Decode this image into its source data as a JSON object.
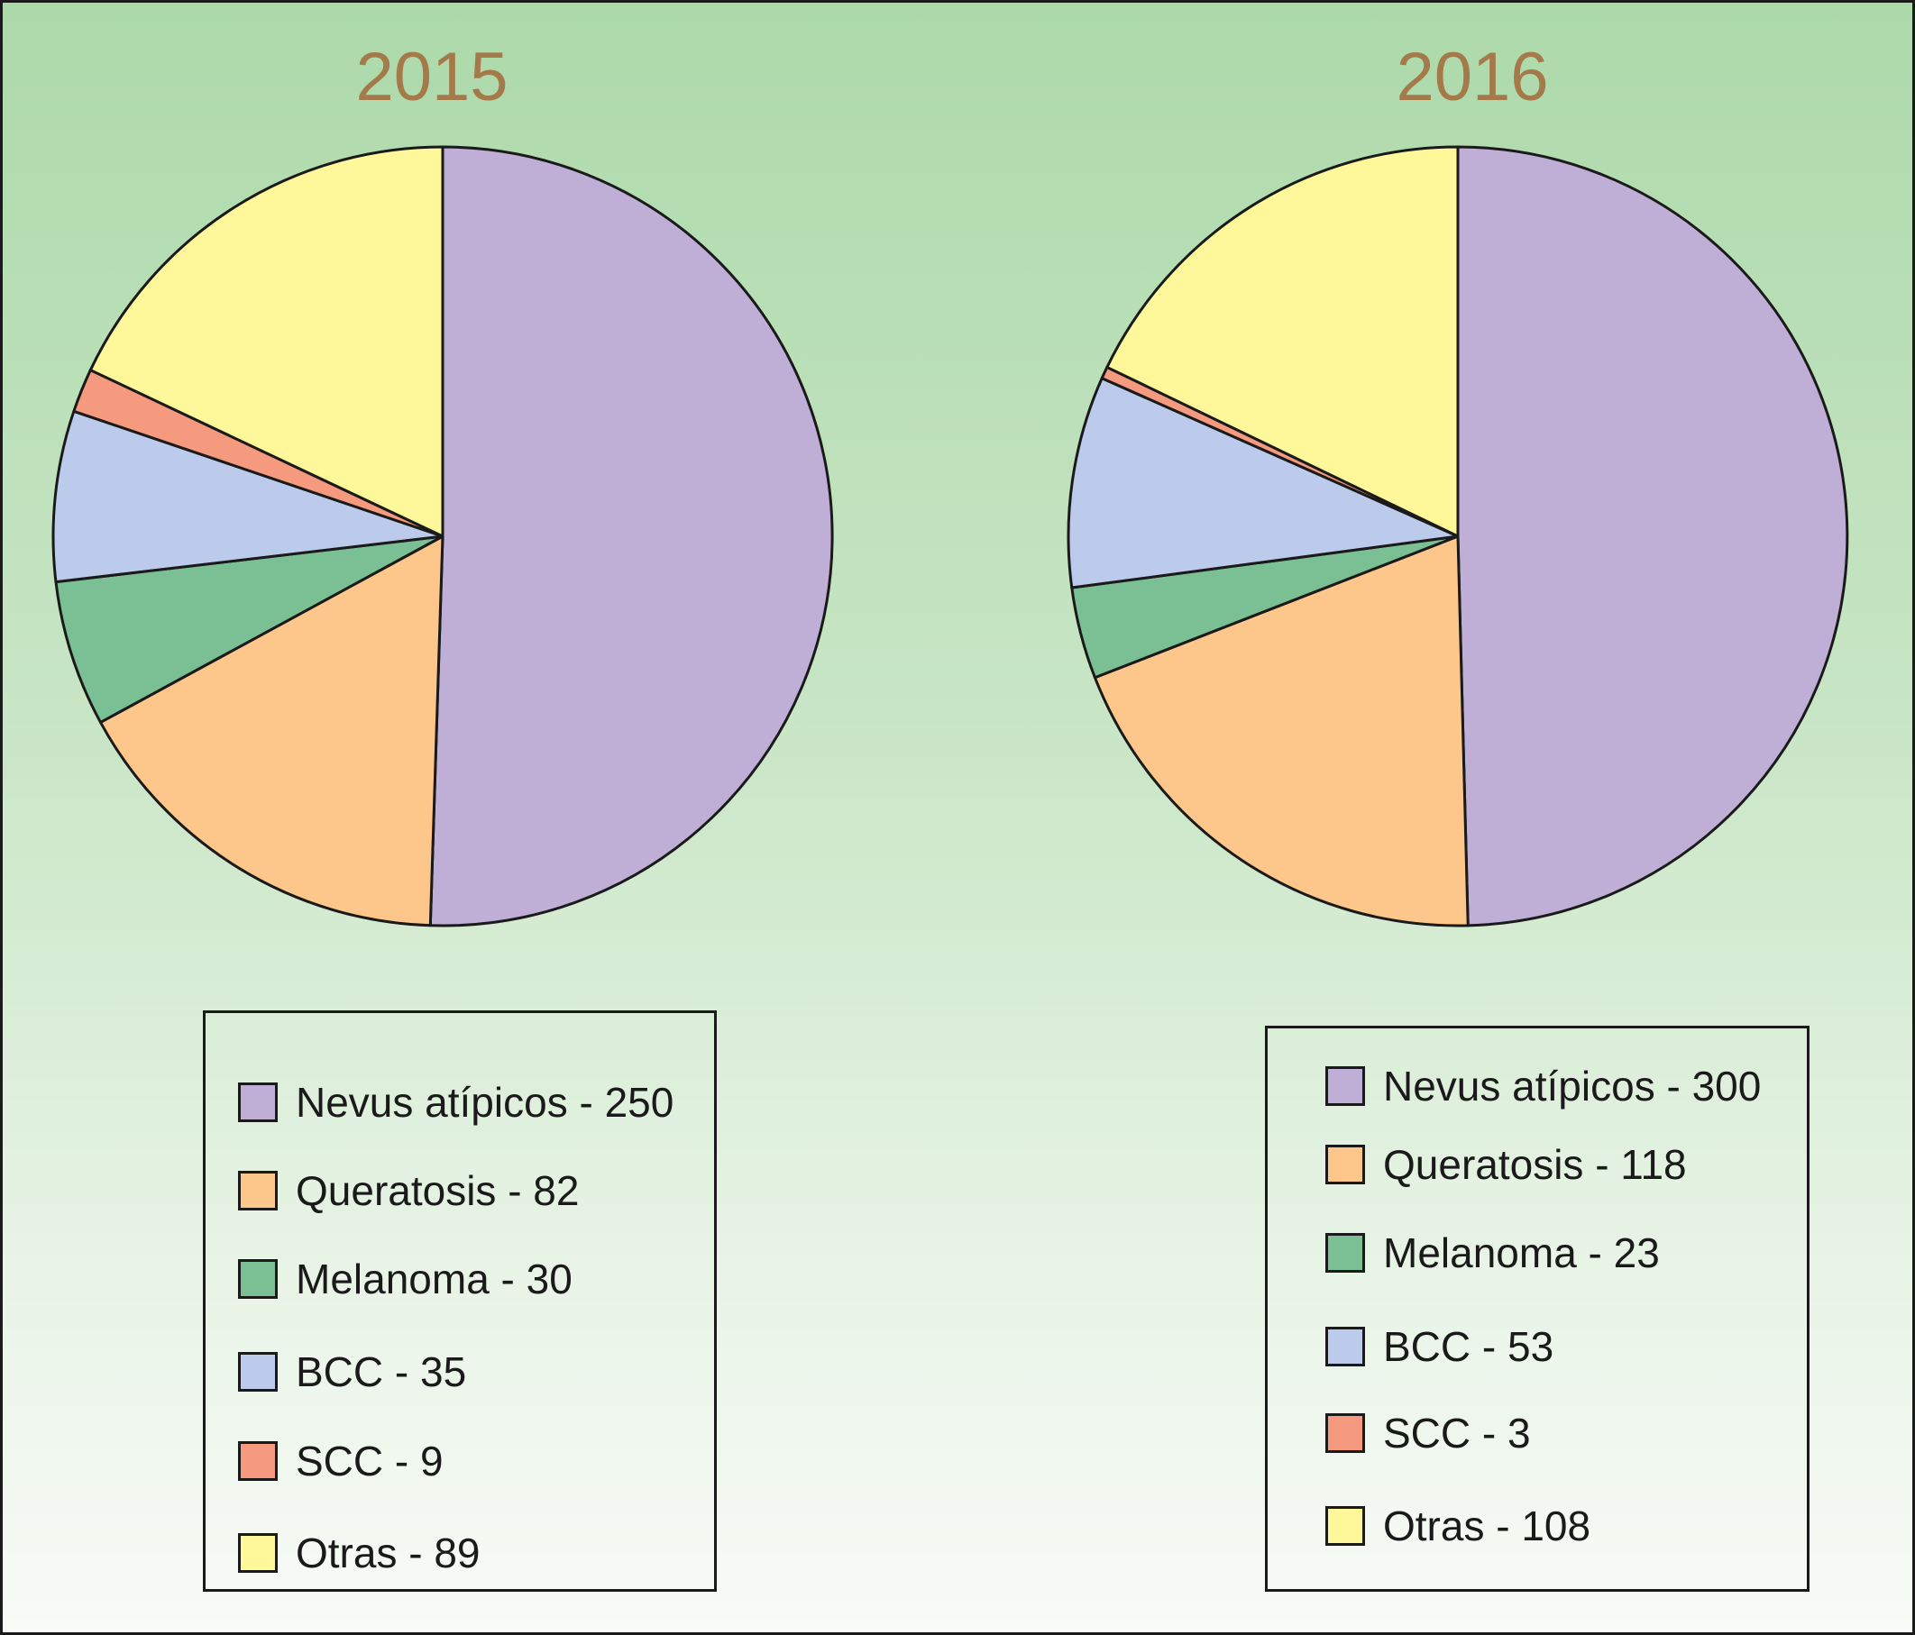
{
  "chart_data": [
    {
      "type": "pie",
      "title": "2015",
      "categories": [
        "Nevus atípicos",
        "Queratosis",
        "Melanoma",
        "BCC",
        "SCC",
        "Otras"
      ],
      "values": [
        250,
        82,
        30,
        35,
        9,
        89
      ],
      "colors": [
        "#bfaed6",
        "#fdc68a",
        "#7bbf94",
        "#bccbeb",
        "#f59a7e",
        "#fff89a"
      ],
      "legend": {
        "placement": "below",
        "items": [
          {
            "label": "Nevus atípicos - 250",
            "color": "#bfaed6"
          },
          {
            "label": "Queratosis - 82",
            "color": "#fdc68a"
          },
          {
            "label": "Melanoma - 30",
            "color": "#7bbf94"
          },
          {
            "label": "BCC - 35",
            "color": "#bccbeb"
          },
          {
            "label": "SCC - 9",
            "color": "#f59a7e"
          },
          {
            "label": "Otras - 89",
            "color": "#fff89a"
          }
        ]
      }
    },
    {
      "type": "pie",
      "title": "2016",
      "categories": [
        "Nevus atípicos",
        "Queratosis",
        "Melanoma",
        "BCC",
        "SCC",
        "Otras"
      ],
      "values": [
        300,
        118,
        23,
        53,
        3,
        108
      ],
      "colors": [
        "#bfaed6",
        "#fdc68a",
        "#7bbf94",
        "#bccbeb",
        "#f59a7e",
        "#fff89a"
      ],
      "legend": {
        "placement": "below",
        "items": [
          {
            "label": "Nevus atípicos - 300",
            "color": "#bfaed6"
          },
          {
            "label": "Queratosis - 118",
            "color": "#fdc68a"
          },
          {
            "label": "Melanoma - 23",
            "color": "#7bbf94"
          },
          {
            "label": "BCC - 53",
            "color": "#bccbeb"
          },
          {
            "label": "SCC - 3",
            "color": "#f59a7e"
          },
          {
            "label": "Otras - 108",
            "color": "#fff89a"
          }
        ]
      }
    }
  ]
}
